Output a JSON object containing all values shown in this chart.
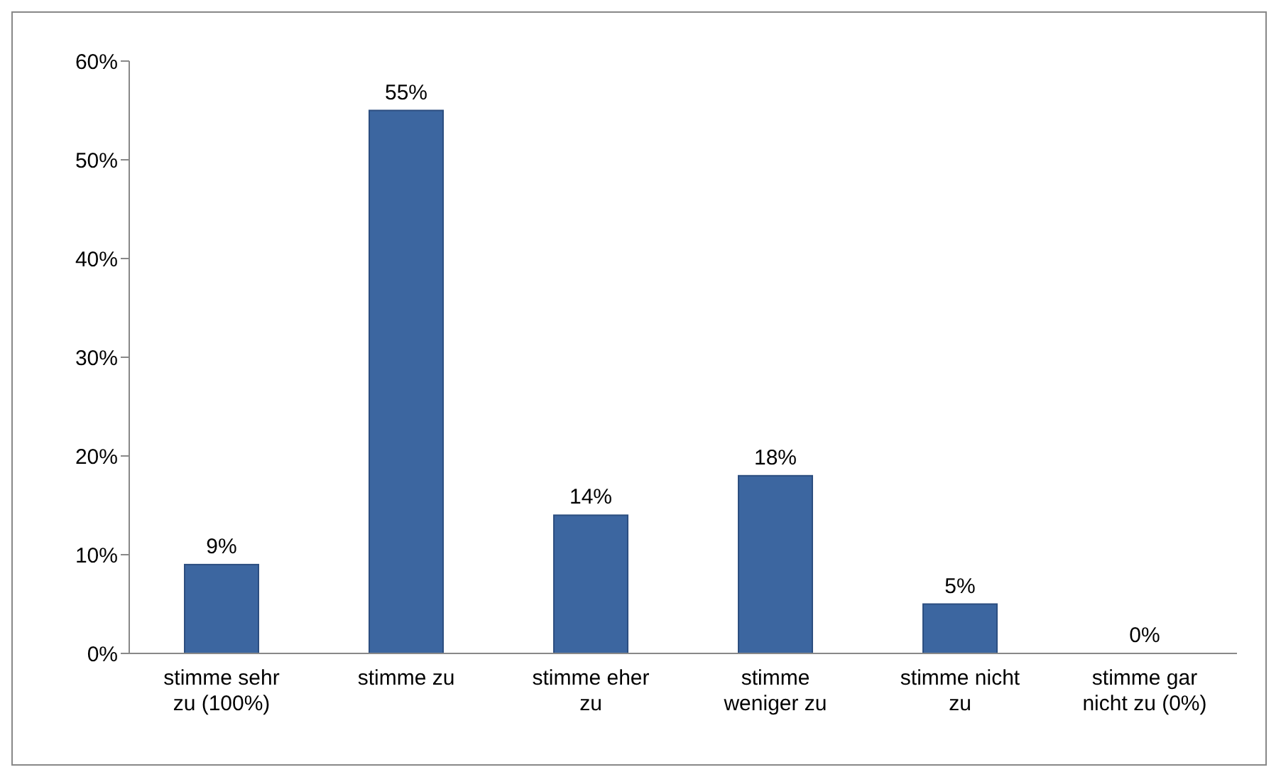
{
  "chart_data": {
    "type": "bar",
    "categories": [
      "stimme sehr zu (100%)",
      "stimme zu",
      "stimme eher zu",
      "stimme weniger zu",
      "stimme nicht zu",
      "stimme gar nicht zu (0%)"
    ],
    "values": [
      9,
      55,
      14,
      18,
      5,
      0
    ],
    "value_labels": [
      "9%",
      "55%",
      "14%",
      "18%",
      "5%",
      "0%"
    ],
    "color": "#3c66a0",
    "ylim": [
      0,
      60
    ],
    "yticks": [
      {
        "value": 0,
        "label": "0%"
      },
      {
        "value": 10,
        "label": "10%"
      },
      {
        "value": 20,
        "label": "20%"
      },
      {
        "value": 30,
        "label": "30%"
      },
      {
        "value": 40,
        "label": "40%"
      },
      {
        "value": 50,
        "label": "50%"
      },
      {
        "value": 60,
        "label": "60%"
      }
    ],
    "grid": false,
    "legend": false
  }
}
